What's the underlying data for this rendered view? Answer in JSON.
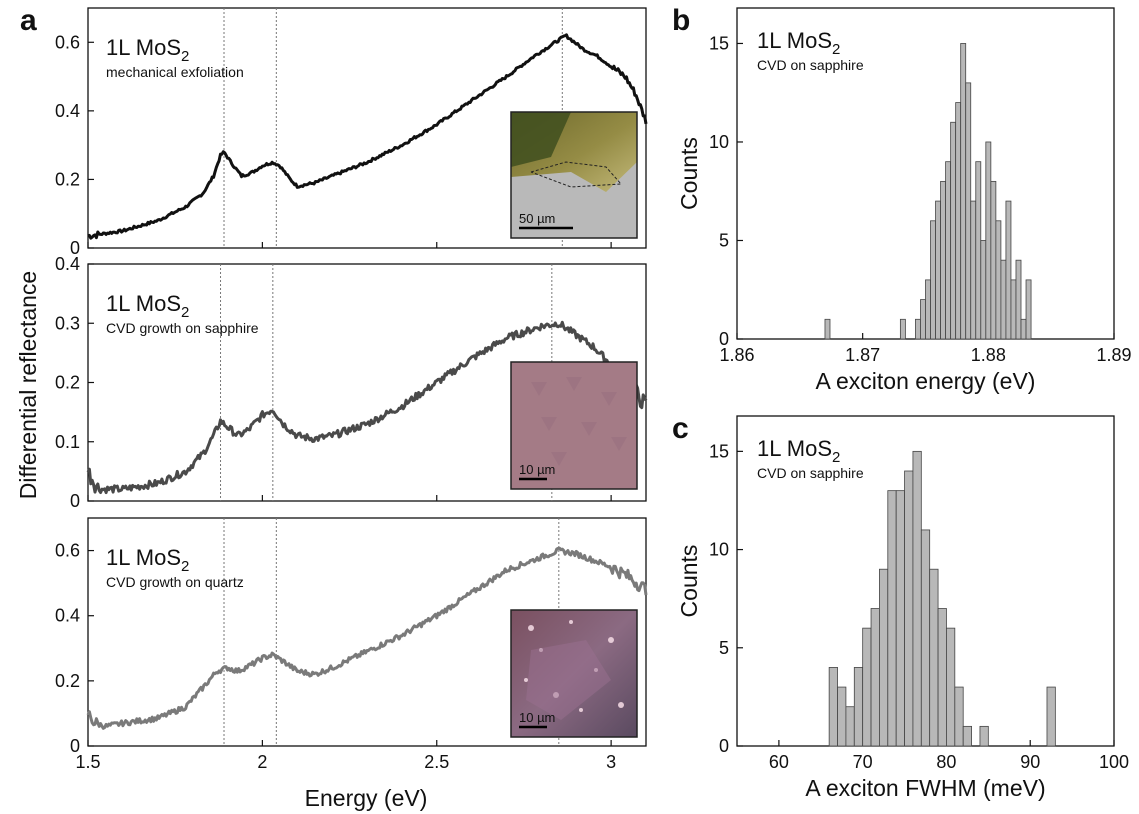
{
  "figure": {
    "panel_labels": [
      "a",
      "b",
      "c"
    ],
    "a_shared_xlabel": "Energy (eV)",
    "a_shared_ylabel": "Differential reflectance"
  },
  "colors": {
    "exfoliated": "#111111",
    "sapphire": "#4a4a4a",
    "quartz": "#7a7a7a",
    "hist_fill": "#b8b8b8",
    "hist_edge": "#444444",
    "vline": "#777777"
  },
  "chart_data": [
    {
      "id": "a1",
      "type": "line",
      "label_main": "1L MoS",
      "label_sub": "2",
      "label_detail": "mechanical exfoliation",
      "xlim": [
        1.5,
        3.1
      ],
      "ylim": [
        0,
        0.7
      ],
      "xticks": [
        "1.5",
        "2",
        "2.5",
        "3"
      ],
      "xticklabels_visible": false,
      "yticks": [
        "0",
        "0.2",
        "0.4",
        "0.6"
      ],
      "vlines": [
        1.89,
        2.04,
        2.86
      ],
      "noise": 0.004,
      "shape": [
        [
          1.5,
          0.035
        ],
        [
          1.6,
          0.05
        ],
        [
          1.7,
          0.08
        ],
        [
          1.78,
          0.12
        ],
        [
          1.83,
          0.16
        ],
        [
          1.86,
          0.21
        ],
        [
          1.88,
          0.27
        ],
        [
          1.89,
          0.28
        ],
        [
          1.91,
          0.25
        ],
        [
          1.94,
          0.21
        ],
        [
          1.97,
          0.22
        ],
        [
          2.0,
          0.24
        ],
        [
          2.03,
          0.25
        ],
        [
          2.05,
          0.24
        ],
        [
          2.08,
          0.2
        ],
        [
          2.1,
          0.18
        ],
        [
          2.15,
          0.19
        ],
        [
          2.2,
          0.21
        ],
        [
          2.3,
          0.25
        ],
        [
          2.4,
          0.3
        ],
        [
          2.5,
          0.36
        ],
        [
          2.6,
          0.43
        ],
        [
          2.7,
          0.5
        ],
        [
          2.78,
          0.56
        ],
        [
          2.84,
          0.6
        ],
        [
          2.87,
          0.62
        ],
        [
          2.92,
          0.58
        ],
        [
          2.96,
          0.56
        ],
        [
          3.0,
          0.53
        ],
        [
          3.04,
          0.5
        ],
        [
          3.07,
          0.45
        ],
        [
          3.1,
          0.37
        ]
      ],
      "inset": {
        "scale_label": "50 µm",
        "style": "flake"
      }
    },
    {
      "id": "a2",
      "type": "line",
      "label_main": "1L MoS",
      "label_sub": "2",
      "label_detail": "CVD growth on sapphire",
      "xlim": [
        1.5,
        3.1
      ],
      "ylim": [
        0,
        0.4
      ],
      "xticks": [
        "1.5",
        "2",
        "2.5",
        "3"
      ],
      "xticklabels_visible": false,
      "yticks": [
        "0",
        "0.1",
        "0.2",
        "0.3",
        "0.4"
      ],
      "vlines": [
        1.88,
        2.03,
        2.83
      ],
      "noise": 0.006,
      "shape": [
        [
          1.5,
          0.05
        ],
        [
          1.53,
          0.02
        ],
        [
          1.6,
          0.02
        ],
        [
          1.7,
          0.03
        ],
        [
          1.78,
          0.05
        ],
        [
          1.83,
          0.08
        ],
        [
          1.86,
          0.11
        ],
        [
          1.88,
          0.135
        ],
        [
          1.9,
          0.125
        ],
        [
          1.93,
          0.11
        ],
        [
          1.96,
          0.12
        ],
        [
          2.0,
          0.145
        ],
        [
          2.03,
          0.155
        ],
        [
          2.06,
          0.13
        ],
        [
          2.1,
          0.11
        ],
        [
          2.15,
          0.105
        ],
        [
          2.2,
          0.11
        ],
        [
          2.3,
          0.13
        ],
        [
          2.4,
          0.16
        ],
        [
          2.5,
          0.2
        ],
        [
          2.6,
          0.24
        ],
        [
          2.7,
          0.275
        ],
        [
          2.8,
          0.295
        ],
        [
          2.85,
          0.3
        ],
        [
          2.9,
          0.28
        ],
        [
          2.95,
          0.26
        ],
        [
          3.0,
          0.23
        ],
        [
          3.05,
          0.2
        ],
        [
          3.1,
          0.16
        ]
      ],
      "inset": {
        "scale_label": "10 µm",
        "style": "pink"
      }
    },
    {
      "id": "a3",
      "type": "line",
      "label_main": "1L MoS",
      "label_sub": "2",
      "label_detail": "CVD growth on quartz",
      "xlim": [
        1.5,
        3.1
      ],
      "ylim": [
        0,
        0.7
      ],
      "xticks": [
        "1.5",
        "2",
        "2.5",
        "3"
      ],
      "xticklabels_visible": true,
      "yticks": [
        "0",
        "0.2",
        "0.4",
        "0.6"
      ],
      "vlines": [
        1.89,
        2.04,
        2.85
      ],
      "noise": 0.008,
      "shape": [
        [
          1.5,
          0.1
        ],
        [
          1.52,
          0.07
        ],
        [
          1.55,
          0.06
        ],
        [
          1.6,
          0.07
        ],
        [
          1.7,
          0.085
        ],
        [
          1.78,
          0.12
        ],
        [
          1.83,
          0.18
        ],
        [
          1.87,
          0.23
        ],
        [
          1.9,
          0.24
        ],
        [
          1.93,
          0.23
        ],
        [
          1.97,
          0.25
        ],
        [
          2.0,
          0.27
        ],
        [
          2.03,
          0.28
        ],
        [
          2.06,
          0.26
        ],
        [
          2.1,
          0.23
        ],
        [
          2.15,
          0.22
        ],
        [
          2.2,
          0.24
        ],
        [
          2.3,
          0.29
        ],
        [
          2.4,
          0.34
        ],
        [
          2.5,
          0.4
        ],
        [
          2.6,
          0.47
        ],
        [
          2.7,
          0.54
        ],
        [
          2.8,
          0.58
        ],
        [
          2.85,
          0.6
        ],
        [
          2.9,
          0.59
        ],
        [
          2.95,
          0.57
        ],
        [
          3.0,
          0.55
        ],
        [
          3.05,
          0.52
        ],
        [
          3.1,
          0.48
        ]
      ],
      "inset": {
        "scale_label": "10 µm",
        "style": "quartz"
      }
    },
    {
      "id": "b",
      "type": "bar",
      "label_main": "1L MoS",
      "label_sub": "2",
      "label_detail": "CVD on sapphire",
      "xlabel": "A exciton energy (eV)",
      "ylabel": "Counts",
      "xlim": [
        1.86,
        1.89
      ],
      "ylim": [
        0,
        16.8
      ],
      "xticks": [
        "1.86",
        "1.87",
        "1.88",
        "1.89"
      ],
      "yticks": [
        "0",
        "5",
        "10",
        "15"
      ],
      "bin_width": 0.0004,
      "bin_centers": [
        1.8672,
        1.8732,
        1.8744,
        1.8748,
        1.8752,
        1.8756,
        1.876,
        1.8764,
        1.8768,
        1.8772,
        1.8776,
        1.878,
        1.8784,
        1.8788,
        1.8792,
        1.8796,
        1.88,
        1.8804,
        1.8808,
        1.8812,
        1.8816,
        1.882,
        1.8824,
        1.8828,
        1.8832
      ],
      "counts": [
        1,
        1,
        1,
        2,
        3,
        6,
        7,
        8,
        9,
        11,
        12,
        15,
        13,
        7,
        9,
        5,
        10,
        8,
        6,
        4,
        7,
        3,
        4,
        1,
        3
      ]
    },
    {
      "id": "c",
      "type": "bar",
      "label_main": "1L MoS",
      "label_sub": "2",
      "label_detail": "CVD on sapphire",
      "xlabel": "A exciton FWHM (meV)",
      "ylabel": "Counts",
      "xlim": [
        55,
        100
      ],
      "ylim": [
        0,
        16.8
      ],
      "xticks": [
        "60",
        "70",
        "80",
        "90",
        "100"
      ],
      "yticks": [
        "0",
        "5",
        "10",
        "15"
      ],
      "bin_width": 1,
      "bin_centers": [
        66.5,
        67.5,
        68.5,
        69.5,
        70.5,
        71.5,
        72.5,
        73.5,
        74.5,
        75.5,
        76.5,
        77.5,
        78.5,
        79.5,
        80.5,
        81.5,
        82.5,
        84.5,
        92.5
      ],
      "counts": [
        4,
        3,
        2,
        4,
        6,
        7,
        9,
        13,
        13,
        14,
        15,
        11,
        9,
        7,
        6,
        3,
        1,
        1,
        3
      ]
    }
  ]
}
